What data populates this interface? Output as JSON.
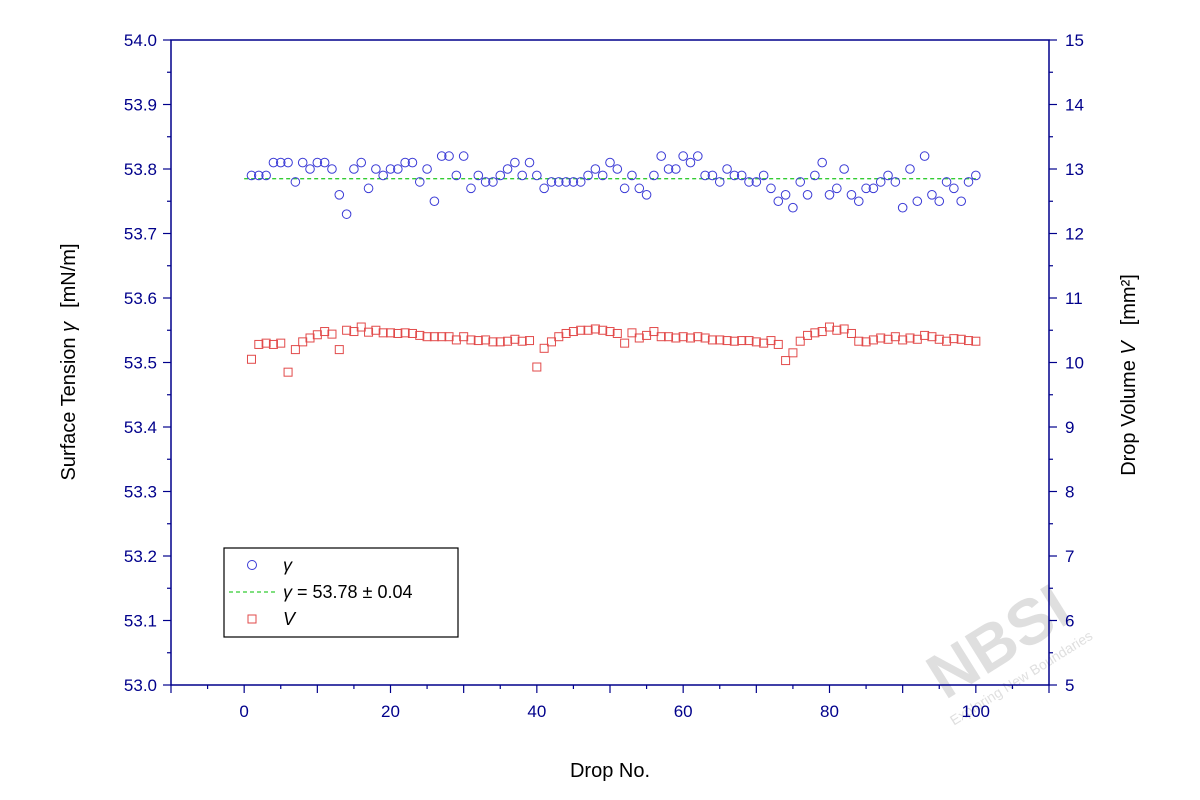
{
  "chart_data": {
    "type": "scatter",
    "xlabel": "Drop No.",
    "ylabel_left": {
      "text": "Surface Tension ",
      "symbol": "γ",
      "unit": "[mN/m]"
    },
    "ylabel_right": {
      "text": "Drop Volume ",
      "symbol": "V",
      "unit": "[mm²]"
    },
    "x_range": [
      -10,
      110
    ],
    "x_ticks": [
      0,
      20,
      40,
      60,
      80,
      100
    ],
    "y_left_range": [
      53.0,
      54.0
    ],
    "y_left_ticks": [
      "53.0",
      "53.1",
      "53.2",
      "53.3",
      "53.4",
      "53.5",
      "53.6",
      "53.7",
      "53.8",
      "53.9",
      "54.0"
    ],
    "y_right_range": [
      5,
      15
    ],
    "y_right_ticks": [
      "5",
      "6",
      "7",
      "8",
      "9",
      "10",
      "11",
      "12",
      "13",
      "14",
      "15"
    ],
    "grid": false,
    "legend_position": "bottom-left",
    "legend": [
      {
        "label_symbol": "γ",
        "label_rest": ""
      },
      {
        "label_symbol": "γ",
        "label_rest": " = 53.78 ± 0.04"
      },
      {
        "label_symbol": "V",
        "label_rest": ""
      }
    ],
    "mean_line": {
      "value": 53.785,
      "x_from": 0,
      "x_to": 100
    },
    "series": [
      {
        "name": "γ",
        "axis": "left",
        "marker": "circle",
        "color": "#3b3bd6",
        "x": [
          1,
          2,
          3,
          4,
          5,
          6,
          7,
          8,
          9,
          10,
          11,
          12,
          13,
          14,
          15,
          16,
          17,
          18,
          19,
          20,
          21,
          22,
          23,
          24,
          25,
          26,
          27,
          28,
          29,
          30,
          31,
          32,
          33,
          34,
          35,
          36,
          37,
          38,
          39,
          40,
          41,
          42,
          43,
          44,
          45,
          46,
          47,
          48,
          49,
          50,
          51,
          52,
          53,
          54,
          55,
          56,
          57,
          58,
          59,
          60,
          61,
          62,
          63,
          64,
          65,
          66,
          67,
          68,
          69,
          70,
          71,
          72,
          73,
          74,
          75,
          76,
          77,
          78,
          79,
          80,
          81,
          82,
          83,
          84,
          85,
          86,
          87,
          88,
          89,
          90,
          91,
          92,
          93,
          94,
          95,
          96,
          97,
          98,
          99,
          100
        ],
        "y": [
          53.79,
          53.79,
          53.79,
          53.81,
          53.81,
          53.81,
          53.78,
          53.81,
          53.8,
          53.81,
          53.81,
          53.8,
          53.76,
          53.73,
          53.8,
          53.81,
          53.77,
          53.8,
          53.79,
          53.8,
          53.8,
          53.81,
          53.81,
          53.78,
          53.8,
          53.75,
          53.82,
          53.82,
          53.79,
          53.82,
          53.77,
          53.79,
          53.78,
          53.78,
          53.79,
          53.8,
          53.81,
          53.79,
          53.81,
          53.79,
          53.77,
          53.78,
          53.78,
          53.78,
          53.78,
          53.78,
          53.79,
          53.8,
          53.79,
          53.81,
          53.8,
          53.77,
          53.79,
          53.77,
          53.76,
          53.79,
          53.82,
          53.8,
          53.8,
          53.82,
          53.81,
          53.82,
          53.79,
          53.79,
          53.78,
          53.8,
          53.79,
          53.79,
          53.78,
          53.78,
          53.79,
          53.77,
          53.75,
          53.76,
          53.74,
          53.78,
          53.76,
          53.79,
          53.81,
          53.76,
          53.77,
          53.8,
          53.76,
          53.75,
          53.77,
          53.77,
          53.78,
          53.79,
          53.78,
          53.74,
          53.8,
          53.75,
          53.82,
          53.76,
          53.75,
          53.78,
          53.77,
          53.75,
          53.78,
          53.79
        ]
      },
      {
        "name": "V",
        "axis": "right",
        "marker": "square",
        "color": "#e24a4a",
        "x": [
          1,
          2,
          3,
          4,
          5,
          6,
          7,
          8,
          9,
          10,
          11,
          12,
          13,
          14,
          15,
          16,
          17,
          18,
          19,
          20,
          21,
          22,
          23,
          24,
          25,
          26,
          27,
          28,
          29,
          30,
          31,
          32,
          33,
          34,
          35,
          36,
          37,
          38,
          39,
          40,
          41,
          42,
          43,
          44,
          45,
          46,
          47,
          48,
          49,
          50,
          51,
          52,
          53,
          54,
          55,
          56,
          57,
          58,
          59,
          60,
          61,
          62,
          63,
          64,
          65,
          66,
          67,
          68,
          69,
          70,
          71,
          72,
          73,
          74,
          75,
          76,
          77,
          78,
          79,
          80,
          81,
          82,
          83,
          84,
          85,
          86,
          87,
          88,
          89,
          90,
          91,
          92,
          93,
          94,
          95,
          96,
          97,
          98,
          99,
          100
        ],
        "y": [
          10.05,
          10.28,
          10.3,
          10.28,
          10.3,
          9.85,
          10.2,
          10.32,
          10.38,
          10.43,
          10.48,
          10.44,
          10.2,
          10.5,
          10.48,
          10.55,
          10.47,
          10.5,
          10.46,
          10.46,
          10.45,
          10.46,
          10.45,
          10.42,
          10.4,
          10.4,
          10.4,
          10.4,
          10.35,
          10.4,
          10.35,
          10.34,
          10.35,
          10.32,
          10.32,
          10.33,
          10.36,
          10.33,
          10.34,
          9.93,
          10.22,
          10.32,
          10.4,
          10.45,
          10.48,
          10.5,
          10.5,
          10.52,
          10.5,
          10.48,
          10.45,
          10.3,
          10.46,
          10.38,
          10.42,
          10.48,
          10.4,
          10.4,
          10.38,
          10.4,
          10.38,
          10.4,
          10.38,
          10.35,
          10.35,
          10.34,
          10.33,
          10.34,
          10.34,
          10.32,
          10.3,
          10.34,
          10.28,
          10.03,
          10.15,
          10.33,
          10.42,
          10.46,
          10.48,
          10.55,
          10.5,
          10.52,
          10.45,
          10.33,
          10.32,
          10.35,
          10.38,
          10.36,
          10.4,
          10.35,
          10.38,
          10.36,
          10.42,
          10.4,
          10.36,
          10.33,
          10.37,
          10.36,
          10.34,
          10.33
        ]
      }
    ]
  },
  "watermark": {
    "text": "NBSI",
    "subtext": "Exploring New Boundaries"
  }
}
